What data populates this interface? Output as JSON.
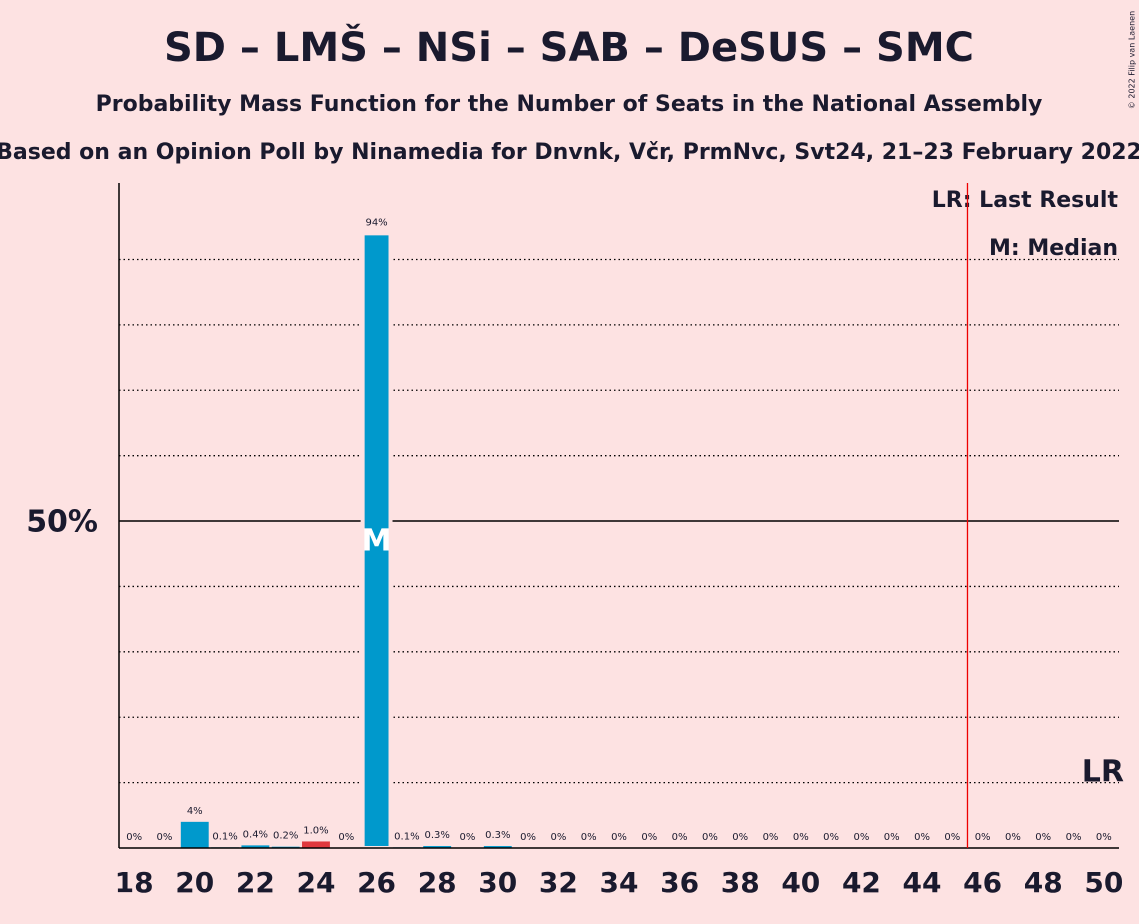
{
  "chart_data": {
    "type": "bar",
    "title": "SD – LMŠ – NSi – SAB – DeSUS – SMC",
    "subtitle": "Probability Mass Function for the Number of Seats in the National Assembly",
    "caption": "Based on an Opinion Poll by Ninamedia for Dnvnk, Včr, PrmNvc, Svt24, 21–23 February 2022",
    "copyright": "© 2022 Filip van Laenen",
    "x": [
      18,
      19,
      20,
      21,
      22,
      23,
      24,
      25,
      26,
      27,
      28,
      29,
      30,
      31,
      32,
      33,
      34,
      35,
      36,
      37,
      38,
      39,
      40,
      41,
      42,
      43,
      44,
      45,
      46,
      47,
      48,
      49,
      50
    ],
    "values": [
      0,
      0,
      4,
      0.1,
      0.4,
      0.2,
      1.0,
      0,
      94,
      0.1,
      0.3,
      0,
      0.3,
      0,
      0,
      0,
      0,
      0,
      0,
      0,
      0,
      0,
      0,
      0,
      0,
      0,
      0,
      0,
      0,
      0,
      0,
      0,
      0
    ],
    "value_labels": [
      "0%",
      "0%",
      "4%",
      "0.1%",
      "0.4%",
      "0.2%",
      "1.0%",
      "0%",
      "94%",
      "0.1%",
      "0.3%",
      "0%",
      "0.3%",
      "0%",
      "0%",
      "0%",
      "0%",
      "0%",
      "0%",
      "0%",
      "0%",
      "0%",
      "0%",
      "0%",
      "0%",
      "0%",
      "0%",
      "0%",
      "0%",
      "0%",
      "0%",
      "0%",
      "0%"
    ],
    "color": "#0099cc",
    "highlight": {
      "x": 24,
      "color": "#e0393e"
    },
    "xlim": [
      17.5,
      50.5
    ],
    "xticks": [
      18,
      20,
      22,
      24,
      26,
      28,
      30,
      32,
      34,
      36,
      38,
      40,
      42,
      44,
      46,
      48,
      50
    ],
    "ylim": [
      0,
      101.7
    ],
    "yticks": [
      {
        "value": 50,
        "label": "50%"
      }
    ],
    "grid_lines": [
      10,
      20,
      30,
      40,
      60,
      70,
      80,
      90
    ],
    "median": 26,
    "median_marker": "M",
    "median_label": "M: Median",
    "last_result_line": 45.5,
    "last_result_marker": "LR",
    "last_result_label": "LR: Last Result"
  }
}
